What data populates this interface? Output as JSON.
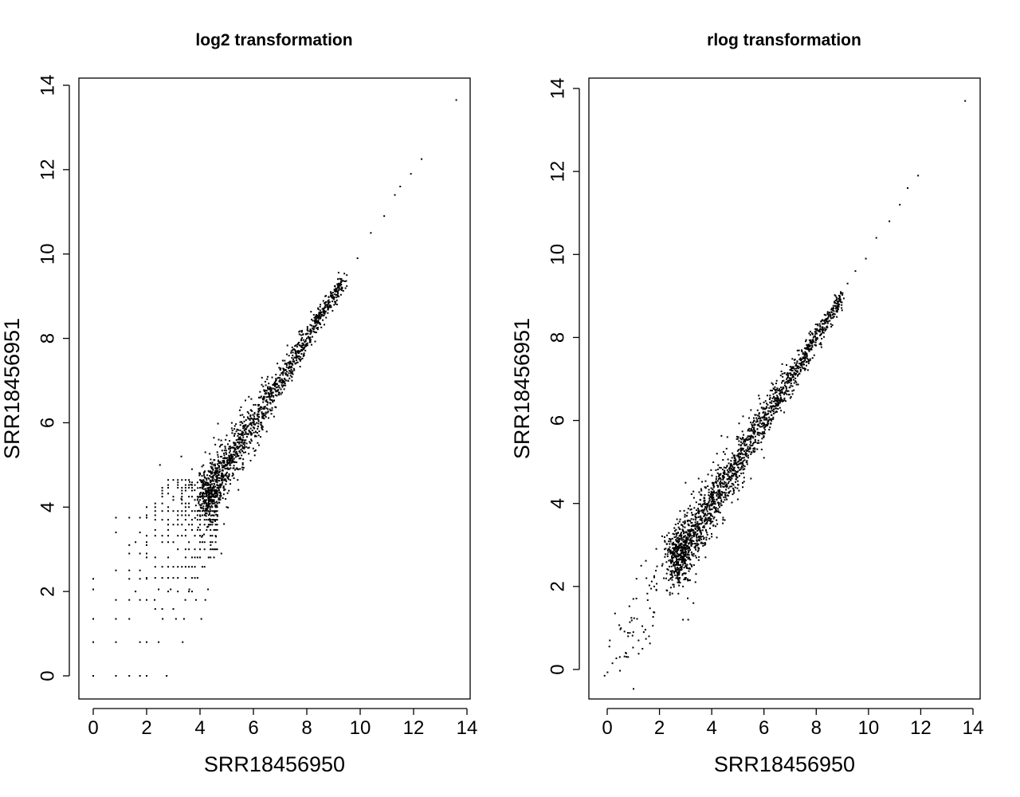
{
  "chart_data": [
    {
      "type": "scatter",
      "title": "log2 transformation",
      "xlabel": "SRR18456950",
      "ylabel": "SRR18456951",
      "xlim": [
        -0.55,
        14.1
      ],
      "ylim": [
        -0.55,
        14.1
      ],
      "x_ticks": [
        0,
        2,
        4,
        6,
        8,
        10,
        12,
        14
      ],
      "y_ticks": [
        0,
        2,
        4,
        6,
        8,
        10,
        12,
        14
      ],
      "discrete_low_counts": true,
      "points": [
        [
          0.0,
          0.0
        ],
        [
          0.0,
          0.8
        ],
        [
          0.0,
          1.35
        ],
        [
          0.0,
          2.05
        ],
        [
          0.0,
          2.3
        ],
        [
          0.85,
          0.0
        ],
        [
          0.85,
          0.8
        ],
        [
          0.85,
          1.35
        ],
        [
          0.85,
          1.8
        ],
        [
          0.85,
          2.5
        ],
        [
          0.85,
          3.4
        ],
        [
          0.85,
          3.75
        ],
        [
          1.35,
          0.0
        ],
        [
          1.35,
          1.35
        ],
        [
          1.35,
          1.8
        ],
        [
          1.35,
          2.3
        ],
        [
          1.35,
          2.5
        ],
        [
          1.35,
          2.9
        ],
        [
          1.35,
          3.1
        ],
        [
          1.35,
          3.75
        ],
        [
          1.75,
          0.0
        ],
        [
          1.75,
          0.8
        ],
        [
          1.75,
          1.8
        ],
        [
          1.75,
          2.3
        ],
        [
          1.75,
          2.5
        ],
        [
          1.75,
          2.9
        ],
        [
          1.75,
          3.4
        ],
        [
          1.75,
          3.75
        ],
        [
          2.0,
          0.0
        ],
        [
          2.0,
          0.8
        ],
        [
          2.0,
          1.8
        ],
        [
          2.0,
          2.3
        ],
        [
          2.0,
          2.9
        ],
        [
          2.0,
          3.1
        ],
        [
          2.0,
          3.75
        ],
        [
          2.0,
          4.0
        ],
        [
          2.75,
          0.0
        ],
        [
          2.45,
          0.8
        ],
        [
          2.6,
          1.35
        ],
        [
          2.3,
          1.8
        ],
        [
          2.45,
          2.05
        ],
        [
          2.9,
          2.05
        ],
        [
          3.6,
          2.05
        ],
        [
          4.3,
          2.05
        ],
        [
          3.35,
          0.8
        ],
        [
          3.1,
          1.35
        ],
        [
          3.4,
          1.35
        ],
        [
          4.05,
          1.35
        ],
        [
          3.85,
          1.8
        ],
        [
          3.45,
          1.8
        ],
        [
          4.2,
          1.8
        ],
        [
          5.3,
          5.4
        ],
        [
          5.1,
          5.2
        ],
        [
          5.6,
          5.6
        ],
        [
          5.9,
          6.0
        ],
        [
          6.2,
          6.2
        ],
        [
          6.5,
          6.5
        ],
        [
          6.8,
          6.8
        ],
        [
          7.1,
          7.0
        ],
        [
          7.4,
          7.4
        ],
        [
          7.7,
          7.7
        ],
        [
          8.0,
          8.0
        ],
        [
          8.3,
          8.4
        ],
        [
          8.6,
          8.7
        ],
        [
          8.9,
          9.0
        ],
        [
          9.2,
          9.3
        ],
        [
          9.5,
          9.5
        ],
        [
          9.9,
          9.9
        ],
        [
          10.4,
          10.5
        ],
        [
          10.9,
          10.9
        ],
        [
          11.3,
          11.4
        ],
        [
          11.5,
          11.6
        ],
        [
          11.9,
          11.9
        ],
        [
          12.3,
          12.25
        ],
        [
          13.6,
          13.65
        ],
        [
          5.7,
          5.3
        ],
        [
          6.3,
          6.0
        ],
        [
          6.7,
          6.3
        ],
        [
          7.3,
          7.0
        ],
        [
          7.9,
          7.6
        ],
        [
          4.9,
          4.4
        ],
        [
          5.4,
          4.9
        ],
        [
          5.8,
          5.4
        ],
        [
          6.2,
          5.7
        ],
        [
          4.5,
          5.0
        ],
        [
          4.7,
          5.6
        ],
        [
          5.0,
          5.7
        ],
        [
          3.8,
          4.4
        ],
        [
          4.0,
          4.8
        ],
        [
          3.3,
          4.2
        ],
        [
          3.7,
          4.9
        ],
        [
          4.2,
          5.3
        ],
        [
          2.5,
          5.0
        ],
        [
          3.3,
          5.2
        ],
        [
          4.6,
          3.9
        ],
        [
          4.9,
          3.6
        ],
        [
          4.6,
          3.3
        ],
        [
          4.4,
          3.1
        ],
        [
          4.8,
          2.9
        ],
        [
          5.0,
          4.0
        ]
      ],
      "note_density": "dense cloud of genes along the diagonal y≈x, integer-count lattice below ~4"
    },
    {
      "type": "scatter",
      "title": "rlog transformation",
      "xlabel": "SRR18456950",
      "ylabel": "SRR18456951",
      "xlim": [
        -0.55,
        14.1
      ],
      "ylim": [
        -0.55,
        14.1
      ],
      "x_ticks": [
        0,
        2,
        4,
        6,
        8,
        10,
        12,
        14
      ],
      "y_ticks": [
        0,
        2,
        4,
        6,
        8,
        10,
        12,
        14
      ],
      "discrete_low_counts": false,
      "points": [
        [
          -0.1,
          -0.15
        ],
        [
          0.1,
          0.7
        ],
        [
          0.2,
          0.15
        ],
        [
          0.3,
          1.35
        ],
        [
          0.8,
          0.3
        ],
        [
          0.8,
          0.8
        ],
        [
          1.0,
          0.9
        ],
        [
          1.0,
          1.7
        ],
        [
          1.2,
          0.7
        ],
        [
          1.35,
          0.5
        ],
        [
          1.4,
          0.9
        ],
        [
          1.6,
          0.8
        ],
        [
          1.3,
          2.5
        ],
        [
          1.5,
          2.2
        ],
        [
          1.8,
          2.0
        ],
        [
          2.1,
          2.5
        ],
        [
          2.4,
          1.8
        ],
        [
          2.9,
          1.2
        ],
        [
          3.1,
          1.2
        ],
        [
          3.3,
          1.6
        ],
        [
          2.5,
          2.8
        ],
        [
          2.8,
          3.0
        ],
        [
          3.0,
          3.3
        ],
        [
          3.2,
          3.1
        ],
        [
          3.4,
          3.5
        ],
        [
          3.6,
          3.6
        ],
        [
          3.8,
          3.9
        ],
        [
          4.0,
          4.2
        ],
        [
          4.2,
          4.1
        ],
        [
          4.4,
          4.5
        ],
        [
          4.7,
          4.8
        ],
        [
          5.0,
          5.0
        ],
        [
          5.3,
          5.4
        ],
        [
          5.6,
          5.7
        ],
        [
          5.9,
          6.0
        ],
        [
          6.2,
          6.3
        ],
        [
          6.5,
          6.6
        ],
        [
          6.8,
          6.9
        ],
        [
          7.1,
          7.2
        ],
        [
          7.4,
          7.5
        ],
        [
          7.7,
          7.8
        ],
        [
          8.0,
          8.1
        ],
        [
          8.3,
          8.4
        ],
        [
          8.6,
          8.7
        ],
        [
          8.9,
          9.0
        ],
        [
          9.2,
          9.3
        ],
        [
          9.5,
          9.6
        ],
        [
          9.9,
          9.9
        ],
        [
          10.3,
          10.4
        ],
        [
          10.8,
          10.8
        ],
        [
          11.2,
          11.2
        ],
        [
          11.5,
          11.6
        ],
        [
          11.9,
          11.9
        ],
        [
          13.7,
          13.7
        ],
        [
          3.0,
          4.5
        ],
        [
          3.5,
          4.6
        ],
        [
          4.2,
          5.2
        ],
        [
          4.6,
          5.6
        ],
        [
          5.2,
          6.1
        ],
        [
          5.8,
          6.6
        ],
        [
          6.3,
          6.9
        ],
        [
          4.0,
          3.2
        ],
        [
          4.5,
          3.6
        ],
        [
          5.0,
          4.1
        ],
        [
          5.5,
          4.6
        ],
        [
          6.0,
          5.1
        ],
        [
          2.2,
          3.1
        ],
        [
          2.7,
          2.1
        ],
        [
          3.4,
          2.3
        ]
      ],
      "note_density": "continuous cloud of genes along the diagonal y≈x, widening at low values"
    }
  ]
}
